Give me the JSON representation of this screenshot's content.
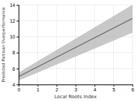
{
  "chart_data": {
    "type": "line",
    "xlabel": "Local Roots Index",
    "ylabel": "Predicted Partisan Overperformance",
    "x": [
      0,
      6
    ],
    "series": [
      {
        "type": "band",
        "color": "#b0b0b0",
        "lower": [
          4.5,
          10.5
        ],
        "upper": [
          5.5,
          14.0
        ]
      },
      {
        "type": "line",
        "color": "#666666",
        "values": [
          5.0,
          12.3
        ]
      }
    ],
    "xlim": [
      0,
      6
    ],
    "ylim": [
      4,
      14
    ],
    "xticks": [
      0,
      1,
      2,
      3,
      4,
      5,
      6
    ],
    "yticks": [
      4,
      6,
      8,
      10,
      12,
      14
    ],
    "grid": true
  }
}
